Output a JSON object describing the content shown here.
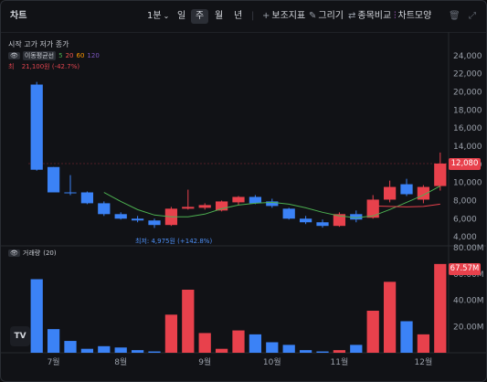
{
  "toolbar": {
    "title": "차트",
    "interval": "1분",
    "periods": [
      "일",
      "주",
      "월",
      "년"
    ],
    "selected_period": "주",
    "indicators": "보조지표",
    "draw": "그리기",
    "compare": "종목비교",
    "chart_style": "차트모양"
  },
  "legend": {
    "ohlc_label": "시작 고가 저가 종가",
    "ma_label": "이동평균선",
    "ma_periods": [
      "5",
      "20",
      "60",
      "120"
    ],
    "ma_colors": [
      "#4caf50",
      "#ef5350",
      "#ff9800",
      "#7e57c2"
    ],
    "high_label": "최",
    "high_value": "21,100원 (-42.7%)",
    "low_value": "최저: 4,975원 (+142.8%)",
    "volume_label": "거래량",
    "volume_period": "(20)"
  },
  "price_tag": "12,080",
  "volume_tag": "67.57M",
  "colors": {
    "up": "#e8414c",
    "down": "#3b82f6",
    "ma5": "#4caf50",
    "ma20": "#e8414c"
  },
  "chart_data": [
    {
      "type": "candlestick",
      "title": "",
      "ylim": [
        3000,
        26000
      ],
      "y_ticks": [
        "24,000",
        "22,000",
        "20,000",
        "18,000",
        "16,000",
        "14,000",
        "12,000",
        "10,000",
        "8,000",
        "6,000",
        "4,000"
      ],
      "x_labels": [
        "7월",
        "8월",
        "9월",
        "10월",
        "11월",
        "12월"
      ],
      "candles": [
        {
          "open": 20800,
          "high": 21100,
          "low": 11300,
          "close": 11400
        },
        {
          "open": 11700,
          "high": 11700,
          "low": 8900,
          "close": 8900
        },
        {
          "open": 8900,
          "high": 10800,
          "low": 8600,
          "close": 8850
        },
        {
          "open": 8900,
          "high": 9000,
          "low": 7600,
          "close": 7700
        },
        {
          "open": 7700,
          "high": 7900,
          "low": 6300,
          "close": 6500
        },
        {
          "open": 6500,
          "high": 6700,
          "low": 5900,
          "close": 6000
        },
        {
          "open": 6000,
          "high": 6300,
          "low": 5600,
          "close": 5800
        },
        {
          "open": 5800,
          "high": 6000,
          "low": 4975,
          "close": 5300
        },
        {
          "open": 5300,
          "high": 7300,
          "low": 5200,
          "close": 7100
        },
        {
          "open": 7100,
          "high": 9200,
          "low": 7000,
          "close": 7300
        },
        {
          "open": 7200,
          "high": 7700,
          "low": 7000,
          "close": 7500
        },
        {
          "open": 6900,
          "high": 8000,
          "low": 6800,
          "close": 7900
        },
        {
          "open": 7800,
          "high": 8500,
          "low": 7500,
          "close": 8400
        },
        {
          "open": 8400,
          "high": 8600,
          "low": 7600,
          "close": 7700
        },
        {
          "open": 7900,
          "high": 8200,
          "low": 7200,
          "close": 7400
        },
        {
          "open": 7100,
          "high": 7200,
          "low": 5900,
          "close": 6000
        },
        {
          "open": 6000,
          "high": 6300,
          "low": 5400,
          "close": 5600
        },
        {
          "open": 5600,
          "high": 5900,
          "low": 5000,
          "close": 5200
        },
        {
          "open": 5200,
          "high": 6700,
          "low": 5100,
          "close": 6500
        },
        {
          "open": 6500,
          "high": 6900,
          "low": 5600,
          "close": 5900
        },
        {
          "open": 6100,
          "high": 8600,
          "low": 6000,
          "close": 8100
        },
        {
          "open": 8100,
          "high": 10200,
          "low": 7800,
          "close": 9500
        },
        {
          "open": 9800,
          "high": 10400,
          "low": 8500,
          "close": 8700
        },
        {
          "open": 8100,
          "high": 9700,
          "low": 7700,
          "close": 9500
        },
        {
          "open": 9600,
          "high": 13300,
          "low": 9100,
          "close": 12080
        }
      ],
      "ma5": [
        null,
        null,
        null,
        null,
        8900,
        7900,
        7000,
        6400,
        6200,
        6200,
        6500,
        7100,
        7500,
        7700,
        7800,
        7600,
        7200,
        6700,
        6300,
        6100,
        6300,
        7000,
        7800,
        8600,
        9600
      ],
      "ma20": [
        null,
        null,
        null,
        null,
        null,
        null,
        null,
        null,
        null,
        null,
        null,
        null,
        null,
        null,
        null,
        null,
        null,
        null,
        null,
        null,
        7400,
        7350,
        7300,
        7350,
        7600
      ]
    },
    {
      "type": "bar",
      "title": "",
      "ylim": [
        0,
        80
      ],
      "y_ticks": [
        "80.00M",
        "60.00M",
        "40.00M",
        "20.00M"
      ],
      "values": [
        56,
        18,
        9,
        3,
        5,
        4,
        2,
        1,
        29,
        48,
        15,
        3,
        17,
        14,
        8,
        6,
        2,
        1,
        2,
        6,
        32,
        54,
        24,
        14,
        67.57
      ]
    }
  ]
}
